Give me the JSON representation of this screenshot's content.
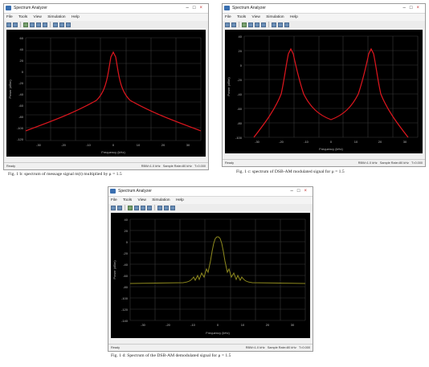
{
  "windows": [
    {
      "title": "Spectrum Analyzer",
      "menu": [
        "File",
        "Tools",
        "View",
        "Simulation",
        "Help"
      ],
      "status_left": "Ready",
      "status_mid": "RBW=1.0 kHz",
      "status_right": "Sample Rate=80 kHz",
      "status_time": "T=0.000",
      "caption": "Fig. 1 b: spectrum of message signal m(t) multiplied by μ = 1.5",
      "trace_color": "#e0161e",
      "yaxis_label": "Power (dBm)",
      "xaxis_label": "Frequency (kHz)",
      "y_ticks": [
        "60",
        "40",
        "20",
        "0",
        "-20",
        "-40",
        "-60",
        "-80",
        "-100",
        "-120"
      ],
      "x_ticks": [
        "-30",
        "-20",
        "-10",
        "0",
        "10",
        "20",
        "30"
      ]
    },
    {
      "title": "Spectrum Analyzer",
      "menu": [
        "File",
        "Tools",
        "View",
        "Simulation",
        "Help"
      ],
      "status_left": "Ready",
      "status_mid": "RBW=1.0 kHz",
      "status_right": "Sample Rate=80 kHz",
      "status_time": "T=0.000",
      "caption": "Fig. 1 c: spectrum of DSB-AM modulated signal for μ = 1.5",
      "trace_color": "#e0161e",
      "yaxis_label": "Power (dBm)",
      "xaxis_label": "Frequency (kHz)",
      "y_ticks": [
        "40",
        "20",
        "0",
        "-20",
        "-40",
        "-60",
        "-80",
        "-100"
      ],
      "x_ticks": [
        "-30",
        "-20",
        "-10",
        "0",
        "10",
        "20",
        "30"
      ]
    },
    {
      "title": "Spectrum Analyzer",
      "menu": [
        "File",
        "Tools",
        "View",
        "Simulation",
        "Help"
      ],
      "status_left": "Ready",
      "status_mid": "RBW=1.0 kHz",
      "status_right": "Sample Rate=80 kHz",
      "status_time": "T=0.000",
      "caption": "Fig. 1 d: Spectrum of the DSB-AM demodulated signal for μ = 1.5",
      "trace_color": "#8f8a1e",
      "yaxis_label": "Power (dBm)",
      "xaxis_label": "Frequency (kHz)",
      "y_ticks": [
        "40",
        "20",
        "0",
        "-20",
        "-40",
        "-60",
        "-80",
        "-100",
        "-120",
        "-140"
      ],
      "x_ticks": [
        "-30",
        "-20",
        "-10",
        "0",
        "10",
        "20",
        "30"
      ]
    }
  ]
}
